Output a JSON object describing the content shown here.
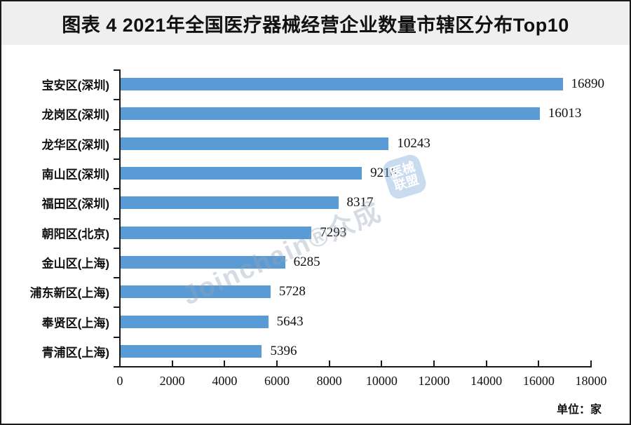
{
  "chart_data": {
    "type": "bar",
    "orientation": "horizontal",
    "title": "图表 4 2021年全国医疗器械经营企业数量市辖区分布Top10",
    "categories": [
      "宝安区(深圳)",
      "龙岗区(深圳)",
      "龙华区(深圳)",
      "南山区(深圳)",
      "福田区(深圳)",
      "朝阳区(北京)",
      "金山区(上海)",
      "浦东新区(上海)",
      "奉贤区(上海)",
      "青浦区(上海)"
    ],
    "values": [
      16890,
      16013,
      10243,
      9216,
      8317,
      7293,
      6285,
      5728,
      5643,
      5396
    ],
    "x_ticks": [
      0,
      2000,
      4000,
      6000,
      8000,
      10000,
      12000,
      14000,
      16000,
      18000
    ],
    "xlim": [
      0,
      18000
    ],
    "xlabel": "",
    "ylabel": "",
    "legend": "none",
    "grid": "off",
    "unit_label": "单位：家",
    "bar_color": "#5B9BD5",
    "axis_color": "#1a1a1a",
    "title_band_color": "#efefef"
  },
  "watermark": {
    "text": "Joinchain®众成",
    "logo_line1": "医械",
    "logo_line2": "联盟",
    "logo_at": "@"
  }
}
